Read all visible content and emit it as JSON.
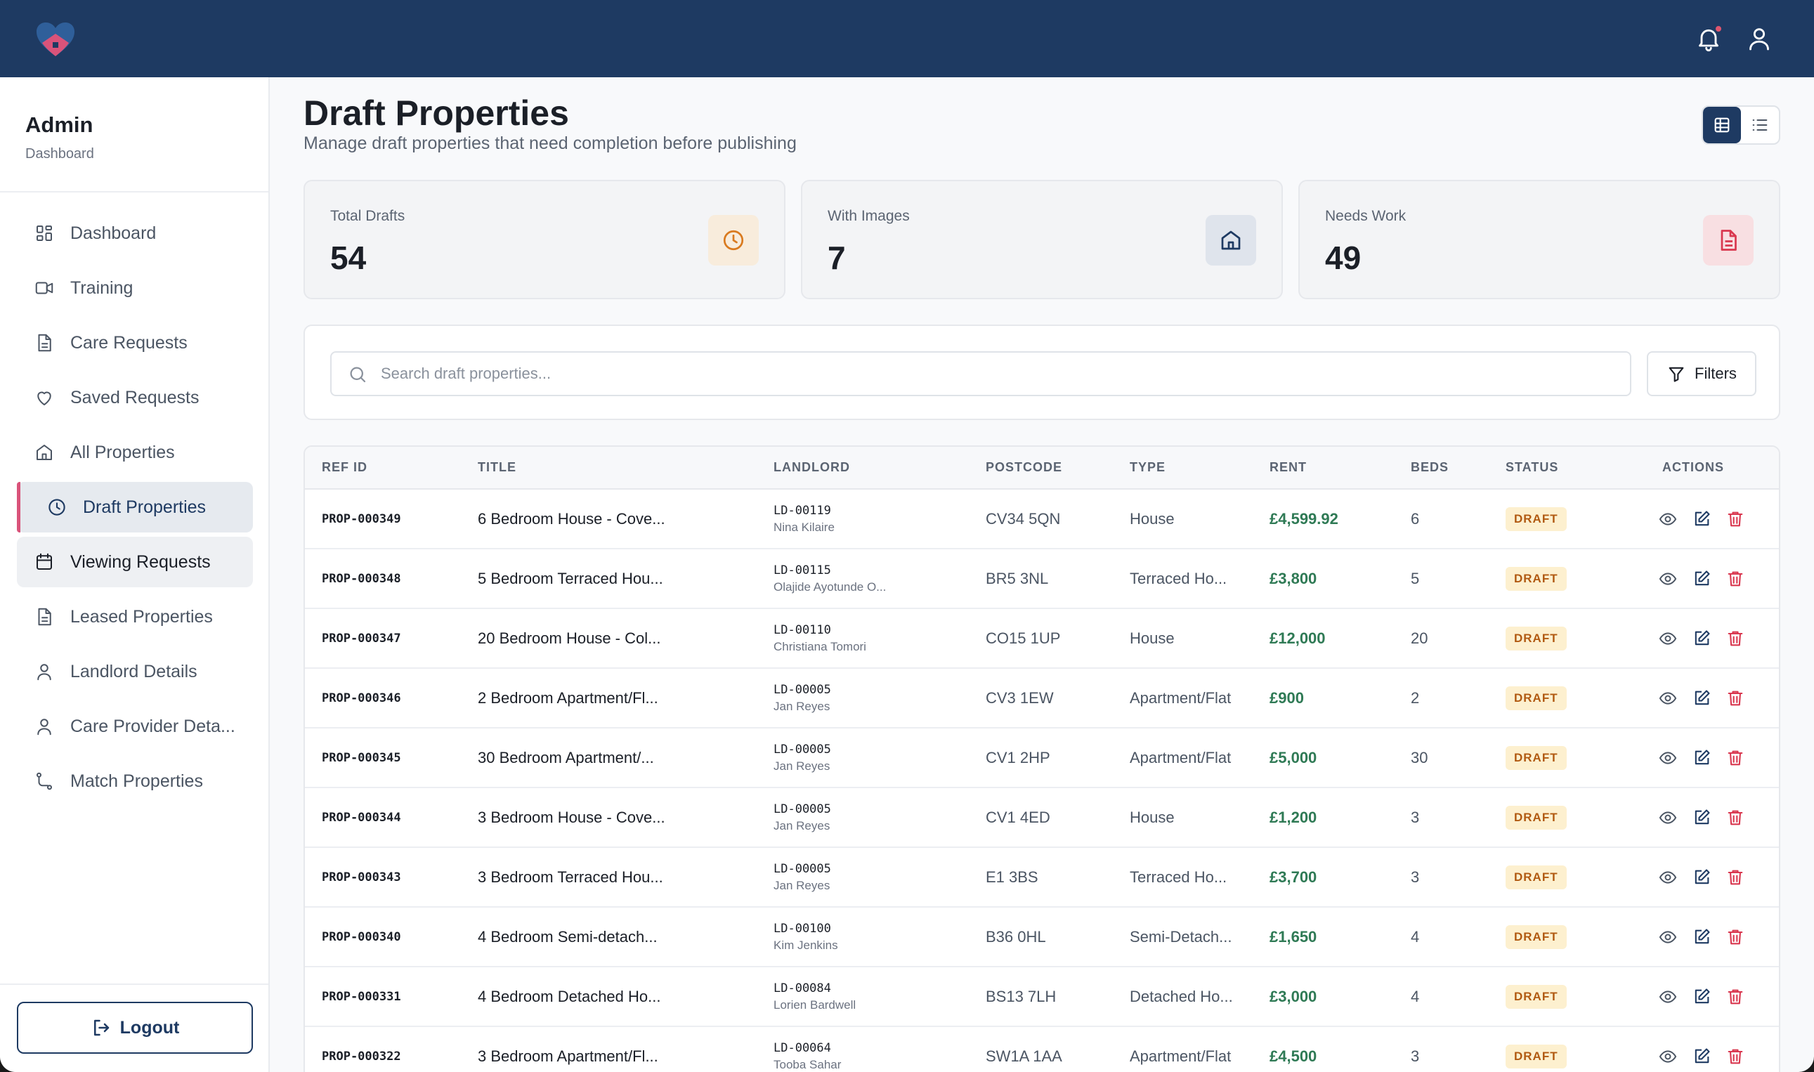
{
  "sidebar": {
    "title": "Admin",
    "subtitle": "Dashboard",
    "items": [
      {
        "label": "Dashboard",
        "icon": "dashboard-icon"
      },
      {
        "label": "Training",
        "icon": "video-icon"
      },
      {
        "label": "Care Requests",
        "icon": "document-icon"
      },
      {
        "label": "Saved Requests",
        "icon": "heart-icon"
      },
      {
        "label": "All Properties",
        "icon": "home-icon"
      },
      {
        "label": "Draft Properties",
        "icon": "clock-icon"
      },
      {
        "label": "Viewing Requests",
        "icon": "calendar-icon"
      },
      {
        "label": "Leased Properties",
        "icon": "document-icon"
      },
      {
        "label": "Landlord Details",
        "icon": "user-icon"
      },
      {
        "label": "Care Provider Deta...",
        "icon": "user-icon"
      },
      {
        "label": "Match Properties",
        "icon": "route-icon"
      }
    ],
    "logout_label": "Logout"
  },
  "header": {
    "title": "Draft Properties",
    "subtitle": "Manage draft properties that need completion before publishing"
  },
  "stats": [
    {
      "label": "Total Drafts",
      "value": "54",
      "icon": "clock-icon",
      "color": "#d97a1f",
      "bg": "#f8ecdc"
    },
    {
      "label": "With Images",
      "value": "7",
      "icon": "home-icon",
      "color": "#1e3a62",
      "bg": "#dfe4ec"
    },
    {
      "label": "Needs Work",
      "value": "49",
      "icon": "document-icon",
      "color": "#d9374f",
      "bg": "#f8dfe2"
    }
  ],
  "search": {
    "placeholder": "Search draft properties...",
    "filters_label": "Filters"
  },
  "table": {
    "columns": [
      "REF ID",
      "TITLE",
      "LANDLORD",
      "POSTCODE",
      "TYPE",
      "RENT",
      "BEDS",
      "STATUS",
      "ACTIONS"
    ],
    "rows": [
      {
        "ref": "PROP-000349",
        "title": "6 Bedroom House - Cove...",
        "ll_id": "LD-00119",
        "ll_name": "Nina Kilaire",
        "postcode": "CV34 5QN",
        "type": "House",
        "rent": "£4,599.92",
        "beds": "6",
        "status": "DRAFT"
      },
      {
        "ref": "PROP-000348",
        "title": "5 Bedroom Terraced Hou...",
        "ll_id": "LD-00115",
        "ll_name": "Olajide Ayotunde O...",
        "postcode": "BR5 3NL",
        "type": "Terraced Ho...",
        "rent": "£3,800",
        "beds": "5",
        "status": "DRAFT"
      },
      {
        "ref": "PROP-000347",
        "title": "20 Bedroom House - Col...",
        "ll_id": "LD-00110",
        "ll_name": "Christiana Tomori",
        "postcode": "CO15 1UP",
        "type": "House",
        "rent": "£12,000",
        "beds": "20",
        "status": "DRAFT"
      },
      {
        "ref": "PROP-000346",
        "title": "2 Bedroom Apartment/Fl...",
        "ll_id": "LD-00005",
        "ll_name": "Jan Reyes",
        "postcode": "CV3 1EW",
        "type": "Apartment/Flat",
        "rent": "£900",
        "beds": "2",
        "status": "DRAFT"
      },
      {
        "ref": "PROP-000345",
        "title": "30 Bedroom Apartment/...",
        "ll_id": "LD-00005",
        "ll_name": "Jan Reyes",
        "postcode": "CV1 2HP",
        "type": "Apartment/Flat",
        "rent": "£5,000",
        "beds": "30",
        "status": "DRAFT"
      },
      {
        "ref": "PROP-000344",
        "title": "3 Bedroom House - Cove...",
        "ll_id": "LD-00005",
        "ll_name": "Jan Reyes",
        "postcode": "CV1 4ED",
        "type": "House",
        "rent": "£1,200",
        "beds": "3",
        "status": "DRAFT"
      },
      {
        "ref": "PROP-000343",
        "title": "3 Bedroom Terraced Hou...",
        "ll_id": "LD-00005",
        "ll_name": "Jan Reyes",
        "postcode": "E1 3BS",
        "type": "Terraced Ho...",
        "rent": "£3,700",
        "beds": "3",
        "status": "DRAFT"
      },
      {
        "ref": "PROP-000340",
        "title": "4 Bedroom Semi-detach...",
        "ll_id": "LD-00100",
        "ll_name": "Kim Jenkins",
        "postcode": "B36 0HL",
        "type": "Semi-Detach...",
        "rent": "£1,650",
        "beds": "4",
        "status": "DRAFT"
      },
      {
        "ref": "PROP-000331",
        "title": "4 Bedroom Detached Ho...",
        "ll_id": "LD-00084",
        "ll_name": "Lorien Bardwell",
        "postcode": "BS13 7LH",
        "type": "Detached Ho...",
        "rent": "£3,000",
        "beds": "4",
        "status": "DRAFT"
      },
      {
        "ref": "PROP-000322",
        "title": "3 Bedroom Apartment/Fl...",
        "ll_id": "LD-00064",
        "ll_name": "Tooba Sahar",
        "postcode": "SW1A 1AA",
        "type": "Apartment/Flat",
        "rent": "£4,500",
        "beds": "3",
        "status": "DRAFT"
      }
    ]
  },
  "colors": {
    "brand": "#1e3a62",
    "accent": "#d9537a",
    "rent": "#2f7a55",
    "draft_badge_bg": "#fdf0cf",
    "draft_badge_text": "#b15a12"
  }
}
